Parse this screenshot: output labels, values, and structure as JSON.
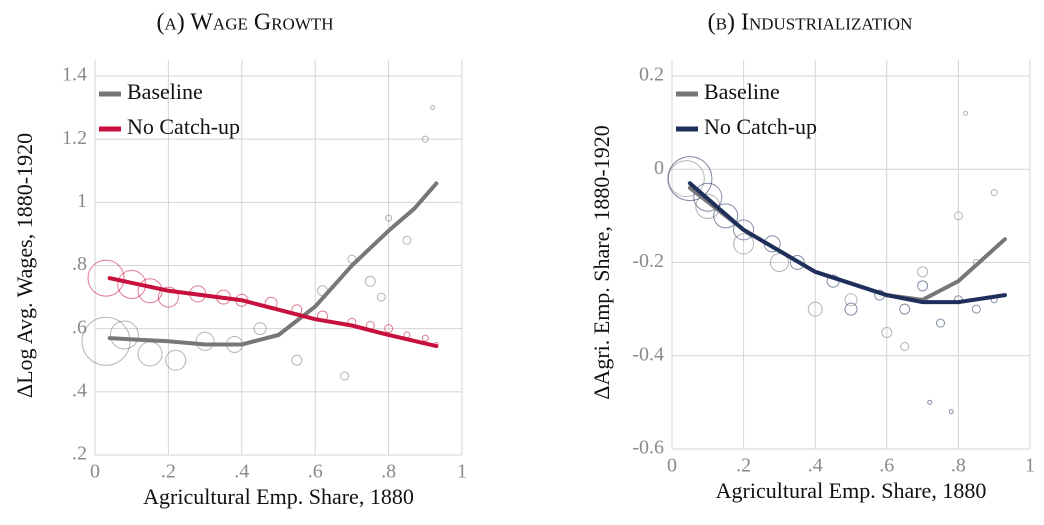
{
  "chart_data": [
    {
      "type": "line",
      "title": "(a) Wage Growth",
      "x_label": "Agricultural Emp. Share, 1880",
      "y_label": "ΔLog Avg. Wages, 1880-1920",
      "xlim": [
        0,
        1
      ],
      "xticks": [
        0,
        {
          "value": 0.2,
          "label": ".2"
        },
        {
          "value": 0.4,
          "label": ".4"
        },
        {
          "value": 0.6,
          "label": ".6"
        },
        {
          "value": 0.8,
          "label": ".8"
        },
        1
      ],
      "ylim": [
        0.2,
        1.4
      ],
      "yticks": [
        {
          "value": 0.2,
          "label": ".2"
        },
        {
          "value": 0.4,
          "label": ".4"
        },
        {
          "value": 0.6,
          "label": ".6"
        },
        {
          "value": 0.8,
          "label": ".8"
        },
        1,
        1.2,
        1.4
      ],
      "grid": true,
      "legend": "upper left",
      "series": [
        {
          "name": "Baseline",
          "color": "#777777",
          "x": [
            0.04,
            0.2,
            0.3,
            0.4,
            0.5,
            0.6,
            0.7,
            0.8,
            0.87,
            0.93
          ],
          "values": [
            0.57,
            0.56,
            0.55,
            0.55,
            0.58,
            0.67,
            0.8,
            0.91,
            0.98,
            1.06
          ],
          "points": {
            "x": [
              0.03,
              0.08,
              0.15,
              0.22,
              0.3,
              0.38,
              0.45,
              0.55,
              0.62,
              0.7,
              0.75,
              0.8,
              0.85,
              0.9,
              0.92,
              0.78,
              0.68
            ],
            "values": [
              0.56,
              0.58,
              0.52,
              0.5,
              0.56,
              0.55,
              0.6,
              0.5,
              0.72,
              0.82,
              0.75,
              0.95,
              0.88,
              1.2,
              1.3,
              0.7,
              0.45
            ],
            "sizes": [
              24,
              14,
              12,
              10,
              9,
              8,
              6,
              5,
              5,
              4,
              5,
              3,
              4,
              3,
              2,
              4,
              4
            ]
          }
        },
        {
          "name": "No Catch-up",
          "color": "#c8103e",
          "x": [
            0.04,
            0.2,
            0.4,
            0.5,
            0.6,
            0.7,
            0.8,
            0.93
          ],
          "values": [
            0.76,
            0.72,
            0.69,
            0.66,
            0.63,
            0.61,
            0.58,
            0.545
          ],
          "points": {
            "x": [
              0.03,
              0.1,
              0.15,
              0.2,
              0.28,
              0.35,
              0.4,
              0.48,
              0.55,
              0.62,
              0.7,
              0.75,
              0.8,
              0.85,
              0.9,
              0.93
            ],
            "values": [
              0.76,
              0.74,
              0.72,
              0.7,
              0.71,
              0.7,
              0.69,
              0.68,
              0.66,
              0.64,
              0.62,
              0.61,
              0.6,
              0.58,
              0.57,
              0.55
            ],
            "sizes": [
              18,
              14,
              12,
              10,
              8,
              7,
              6,
              6,
              5,
              5,
              4,
              4,
              4,
              3,
              3,
              2
            ]
          }
        }
      ]
    },
    {
      "type": "line",
      "title": "(b) Industrialization",
      "x_label": "Agricultural Emp. Share, 1880",
      "y_label": "ΔAgri. Emp. Share, 1880-1920",
      "xlim": [
        0,
        1
      ],
      "xticks": [
        0,
        {
          "value": 0.2,
          "label": ".2"
        },
        {
          "value": 0.4,
          "label": ".4"
        },
        {
          "value": 0.6,
          "label": ".6"
        },
        {
          "value": 0.8,
          "label": ".8"
        },
        1
      ],
      "ylim": [
        -0.6,
        0.2
      ],
      "yticks": [
        -0.6,
        -0.4,
        -0.2,
        0,
        0.2
      ],
      "grid": true,
      "legend": "upper left",
      "series": [
        {
          "name": "Baseline",
          "color": "#777777",
          "x": [
            0.05,
            0.2,
            0.4,
            0.6,
            0.7,
            0.8,
            0.93
          ],
          "values": [
            -0.04,
            -0.13,
            -0.22,
            -0.27,
            -0.28,
            -0.24,
            -0.15
          ],
          "points": {
            "x": [
              0.04,
              0.1,
              0.2,
              0.3,
              0.4,
              0.5,
              0.6,
              0.7,
              0.8,
              0.85,
              0.9,
              0.82,
              0.65
            ],
            "values": [
              -0.02,
              -0.08,
              -0.16,
              -0.2,
              -0.3,
              -0.28,
              -0.35,
              -0.22,
              -0.1,
              -0.2,
              -0.05,
              0.12,
              -0.38
            ],
            "sizes": [
              18,
              12,
              10,
              9,
              7,
              6,
              5,
              5,
              4,
              3,
              3,
              2,
              4
            ]
          }
        },
        {
          "name": "No Catch-up",
          "color": "#1f2f5c",
          "x": [
            0.05,
            0.2,
            0.4,
            0.6,
            0.7,
            0.8,
            0.93
          ],
          "values": [
            -0.03,
            -0.13,
            -0.22,
            -0.27,
            -0.285,
            -0.285,
            -0.27
          ],
          "points": {
            "x": [
              0.05,
              0.1,
              0.15,
              0.2,
              0.28,
              0.35,
              0.45,
              0.5,
              0.58,
              0.65,
              0.7,
              0.75,
              0.8,
              0.85,
              0.9,
              0.72,
              0.78
            ],
            "values": [
              -0.02,
              -0.06,
              -0.1,
              -0.13,
              -0.16,
              -0.2,
              -0.24,
              -0.3,
              -0.27,
              -0.3,
              -0.25,
              -0.33,
              -0.28,
              -0.3,
              -0.28,
              -0.5,
              -0.52
            ],
            "sizes": [
              22,
              14,
              12,
              10,
              8,
              7,
              6,
              6,
              5,
              5,
              5,
              4,
              4,
              4,
              3,
              2,
              2
            ]
          }
        }
      ]
    }
  ]
}
